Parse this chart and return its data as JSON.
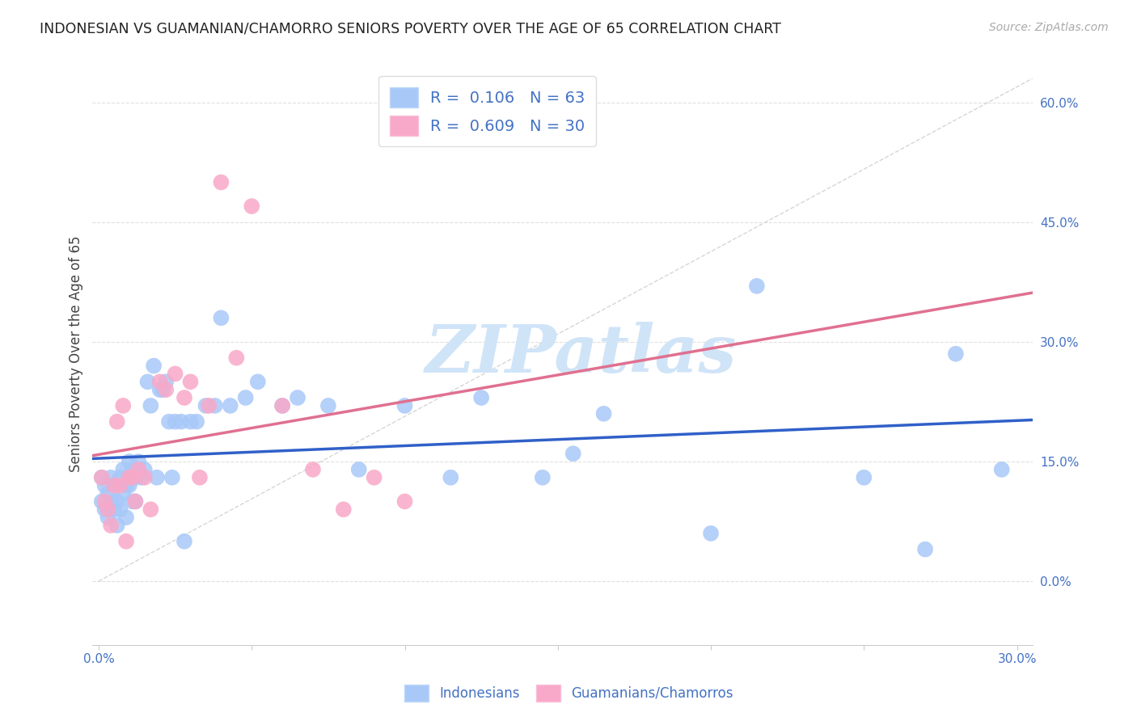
{
  "title": "INDONESIAN VS GUAMANIAN/CHAMORRO SENIORS POVERTY OVER THE AGE OF 65 CORRELATION CHART",
  "source": "Source: ZipAtlas.com",
  "ylabel": "Seniors Poverty Over the Age of 65",
  "xlim": [
    -0.002,
    0.305
  ],
  "ylim": [
    -0.08,
    0.65
  ],
  "yticks": [
    0.0,
    0.15,
    0.3,
    0.45,
    0.6
  ],
  "ytick_labels": [
    "0.0%",
    "15.0%",
    "30.0%",
    "45.0%",
    "60.0%"
  ],
  "xticks": [
    0.0,
    0.05,
    0.1,
    0.15,
    0.2,
    0.25,
    0.3
  ],
  "xtick_labels": [
    "0.0%",
    "",
    "",
    "",
    "",
    "",
    "30.0%"
  ],
  "indonesian_R": 0.106,
  "indonesian_N": 63,
  "guamanian_R": 0.609,
  "guamanian_N": 30,
  "indonesian_color": "#a8c8f8",
  "guamanian_color": "#f8a8c8",
  "indonesian_line_color": "#3060c8",
  "guamanian_line_color": "#e07090",
  "diagonal_color": "#cccccc",
  "background_color": "#ffffff",
  "grid_color": "#e0e0e0",
  "title_color": "#222222",
  "label_color": "#4472c4",
  "source_color": "#aaaaaa",
  "watermark_color": "#d0e4f8",
  "watermark_text": "ZIPatlas",
  "indo_x": [
    0.001,
    0.001,
    0.002,
    0.002,
    0.003,
    0.003,
    0.004,
    0.004,
    0.005,
    0.005,
    0.006,
    0.006,
    0.007,
    0.007,
    0.008,
    0.008,
    0.009,
    0.009,
    0.01,
    0.01,
    0.011,
    0.011,
    0.012,
    0.012,
    0.013,
    0.014,
    0.015,
    0.016,
    0.017,
    0.018,
    0.019,
    0.02,
    0.021,
    0.022,
    0.023,
    0.024,
    0.025,
    0.027,
    0.028,
    0.03,
    0.032,
    0.035,
    0.038,
    0.04,
    0.043,
    0.048,
    0.052,
    0.06,
    0.065,
    0.075,
    0.085,
    0.1,
    0.115,
    0.125,
    0.145,
    0.155,
    0.165,
    0.2,
    0.215,
    0.25,
    0.27,
    0.28,
    0.295
  ],
  "indo_y": [
    0.13,
    0.1,
    0.12,
    0.09,
    0.11,
    0.08,
    0.13,
    0.1,
    0.12,
    0.09,
    0.1,
    0.07,
    0.13,
    0.09,
    0.14,
    0.11,
    0.12,
    0.08,
    0.15,
    0.12,
    0.14,
    0.1,
    0.13,
    0.1,
    0.15,
    0.13,
    0.14,
    0.25,
    0.22,
    0.27,
    0.13,
    0.24,
    0.24,
    0.25,
    0.2,
    0.13,
    0.2,
    0.2,
    0.05,
    0.2,
    0.2,
    0.22,
    0.22,
    0.33,
    0.22,
    0.23,
    0.25,
    0.22,
    0.23,
    0.22,
    0.14,
    0.22,
    0.13,
    0.23,
    0.13,
    0.16,
    0.21,
    0.06,
    0.37,
    0.13,
    0.04,
    0.285,
    0.14
  ],
  "guam_x": [
    0.001,
    0.002,
    0.003,
    0.004,
    0.005,
    0.006,
    0.007,
    0.008,
    0.009,
    0.01,
    0.011,
    0.012,
    0.013,
    0.015,
    0.017,
    0.02,
    0.022,
    0.025,
    0.028,
    0.03,
    0.033,
    0.036,
    0.04,
    0.045,
    0.05,
    0.06,
    0.07,
    0.08,
    0.09,
    0.1
  ],
  "guam_y": [
    0.13,
    0.1,
    0.09,
    0.07,
    0.12,
    0.2,
    0.12,
    0.22,
    0.05,
    0.13,
    0.13,
    0.1,
    0.14,
    0.13,
    0.09,
    0.25,
    0.24,
    0.26,
    0.23,
    0.25,
    0.13,
    0.22,
    0.5,
    0.28,
    0.47,
    0.22,
    0.14,
    0.09,
    0.13,
    0.1
  ]
}
